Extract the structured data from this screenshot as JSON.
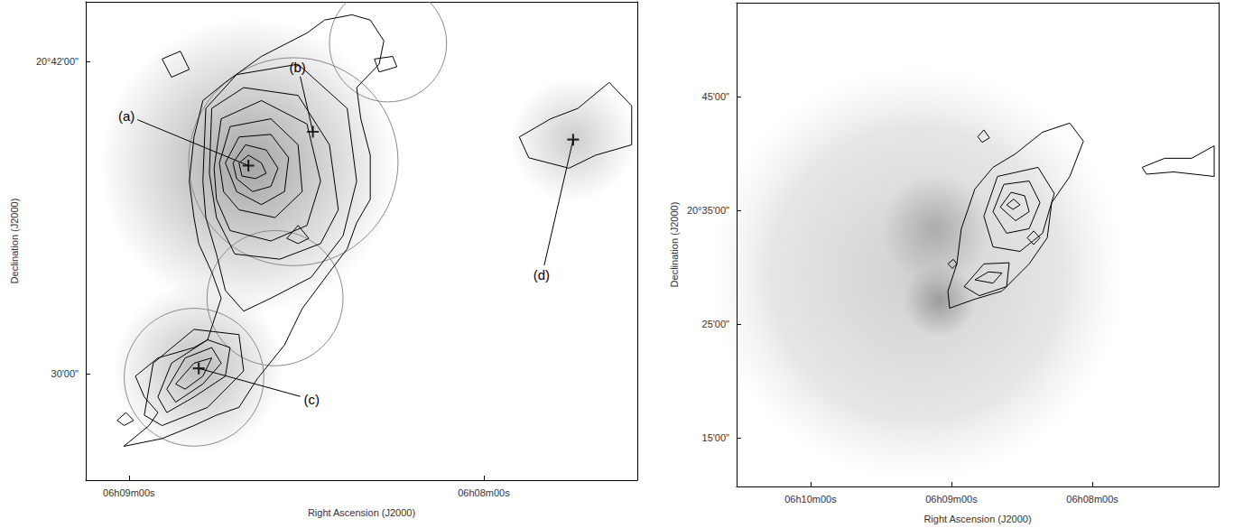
{
  "chart_data": [
    {
      "type": "contour",
      "x_label": "Right Ascension (J2000)",
      "y_label": "Declination (J2000)",
      "color": "#000000",
      "xlim": [
        22147.3,
        22054.05
      ],
      "ylim": [
        25.9,
        44.3
      ],
      "xticks": [
        {
          "value": 22140,
          "label": "06h09m00s"
        },
        {
          "value": 22080,
          "label": "06h08m00s"
        }
      ],
      "yticks": [
        {
          "value": 30,
          "label": "30'00\""
        },
        {
          "value": 42,
          "label": "20°42'00\""
        }
      ],
      "contours": [
        [
          [
            22140.9,
            27.2
          ],
          [
            22136.6,
            28.0
          ],
          [
            22135.1,
            28.5
          ],
          [
            22137.4,
            29.1
          ],
          [
            22138.9,
            29.9
          ],
          [
            22135.1,
            30.6
          ],
          [
            22129.0,
            31.0
          ],
          [
            22126.7,
            31.3
          ],
          [
            22124.4,
            32.9
          ],
          [
            22126.0,
            33.9
          ],
          [
            22128.2,
            35.0
          ],
          [
            22129.0,
            36.0
          ],
          [
            22129.8,
            37.4
          ],
          [
            22129.0,
            39.1
          ],
          [
            22127.5,
            40.5
          ],
          [
            22123.7,
            41.2
          ],
          [
            22117.6,
            42.2
          ],
          [
            22109.9,
            43.1
          ],
          [
            22106.9,
            43.6
          ],
          [
            22102.3,
            43.8
          ],
          [
            22099.2,
            43.6
          ],
          [
            22096.9,
            42.8
          ],
          [
            22097.7,
            41.9
          ],
          [
            22101.5,
            41.0
          ],
          [
            22100.8,
            39.8
          ],
          [
            22099.2,
            38.4
          ],
          [
            22099.2,
            36.7
          ],
          [
            22101.5,
            35.8
          ],
          [
            22103.1,
            34.8
          ],
          [
            22106.1,
            33.9
          ],
          [
            22110.7,
            32.5
          ],
          [
            22113.7,
            31.1
          ],
          [
            22118.3,
            29.8
          ],
          [
            22121.4,
            28.7
          ],
          [
            22125.2,
            28.4
          ],
          [
            22129.0,
            28.0
          ],
          [
            22134.4,
            27.5
          ]
        ],
        [
          [
            22121.4,
            38.1
          ],
          [
            22119.8,
            38.4
          ],
          [
            22117.6,
            38.1
          ],
          [
            22116.8,
            37.7
          ],
          [
            22118.6,
            37.5
          ],
          [
            22120.9,
            37.6
          ]
        ],
        [
          [
            22122.4,
            38.1
          ],
          [
            22120.3,
            38.8
          ],
          [
            22116.8,
            38.6
          ],
          [
            22114.8,
            37.9
          ],
          [
            22116.0,
            37.2
          ],
          [
            22119.1,
            37.0
          ],
          [
            22121.8,
            37.5
          ]
        ],
        [
          [
            22123.7,
            38.1
          ],
          [
            22121.4,
            39.1
          ],
          [
            22116.0,
            39.2
          ],
          [
            22113.0,
            38.3
          ],
          [
            22113.7,
            37.0
          ],
          [
            22117.6,
            36.5
          ],
          [
            22121.8,
            37.0
          ]
        ],
        [
          [
            22124.7,
            38.1
          ],
          [
            22122.9,
            39.5
          ],
          [
            22116.0,
            39.8
          ],
          [
            22111.4,
            38.8
          ],
          [
            22110.7,
            37.0
          ],
          [
            22115.3,
            36.0
          ],
          [
            22121.4,
            36.3
          ],
          [
            22124.0,
            37.0
          ]
        ],
        [
          [
            22125.6,
            37.9
          ],
          [
            22124.4,
            39.8
          ],
          [
            22117.6,
            40.5
          ],
          [
            22109.9,
            39.6
          ],
          [
            22107.6,
            37.4
          ],
          [
            22109.9,
            35.7
          ],
          [
            22116.0,
            35.1
          ],
          [
            22122.9,
            35.5
          ],
          [
            22125.2,
            36.7
          ]
        ],
        [
          [
            22126.4,
            37.7
          ],
          [
            22126.0,
            40.2
          ],
          [
            22120.6,
            41.0
          ],
          [
            22111.4,
            40.7
          ],
          [
            22106.1,
            38.8
          ],
          [
            22104.6,
            36.3
          ],
          [
            22107.6,
            35.0
          ],
          [
            22114.5,
            34.4
          ],
          [
            22122.1,
            34.6
          ],
          [
            22125.2,
            36.0
          ]
        ],
        [
          [
            22127.5,
            37.4
          ],
          [
            22127.0,
            40.2
          ],
          [
            22121.8,
            41.5
          ],
          [
            22111.4,
            41.9
          ],
          [
            22103.1,
            40.2
          ],
          [
            22101.5,
            37.4
          ],
          [
            22103.8,
            35.3
          ],
          [
            22109.2,
            33.7
          ],
          [
            22116.0,
            32.9
          ],
          [
            22120.6,
            32.4
          ],
          [
            22123.7,
            33.2
          ],
          [
            22125.2,
            34.6
          ],
          [
            22127.0,
            36.0
          ]
        ],
        [
          [
            22113.3,
            35.2
          ],
          [
            22111.4,
            35.7
          ],
          [
            22109.6,
            35.2
          ],
          [
            22111.4,
            35.0
          ]
        ],
        [
          [
            22132.1,
            29.6
          ],
          [
            22129.0,
            30.4
          ],
          [
            22126.0,
            30.6
          ],
          [
            22127.5,
            29.9
          ],
          [
            22130.5,
            29.4
          ]
        ],
        [
          [
            22133.6,
            29.4
          ],
          [
            22130.5,
            30.6
          ],
          [
            22126.0,
            31.0
          ],
          [
            22124.4,
            30.4
          ],
          [
            22127.5,
            29.6
          ],
          [
            22132.1,
            28.9
          ]
        ],
        [
          [
            22135.1,
            29.1
          ],
          [
            22132.8,
            30.4
          ],
          [
            22126.7,
            31.3
          ],
          [
            22122.9,
            31.0
          ],
          [
            22123.7,
            29.9
          ],
          [
            22129.0,
            29.1
          ],
          [
            22133.6,
            28.5
          ]
        ],
        [
          [
            22137.4,
            28.4
          ],
          [
            22135.9,
            30.4
          ],
          [
            22129.0,
            31.7
          ],
          [
            22121.4,
            31.5
          ],
          [
            22120.6,
            30.1
          ],
          [
            22126.7,
            28.7
          ],
          [
            22134.4,
            28.0
          ]
        ],
        [
          [
            22134.4,
            42.1
          ],
          [
            22131.3,
            42.4
          ],
          [
            22129.8,
            41.7
          ],
          [
            22132.8,
            41.4
          ]
        ],
        [
          [
            22098.5,
            42.1
          ],
          [
            22095.4,
            42.2
          ],
          [
            22094.7,
            41.8
          ],
          [
            22097.7,
            41.6
          ]
        ],
        [
          [
            22142.0,
            28.2
          ],
          [
            22140.5,
            28.5
          ],
          [
            22139.2,
            28.2
          ],
          [
            22140.8,
            28.0
          ]
        ],
        [
          [
            22074.0,
            39.1
          ],
          [
            22068.7,
            39.8
          ],
          [
            22064.1,
            40.2
          ],
          [
            22058.8,
            41.2
          ],
          [
            22055.0,
            40.3
          ],
          [
            22055.0,
            38.8
          ],
          [
            22061.1,
            38.4
          ],
          [
            22065.6,
            37.9
          ],
          [
            22072.4,
            38.3
          ]
        ]
      ],
      "circles": [
        {
          "x": 22112.2,
          "y": 38.15,
          "rx": 17.7,
          "ry": 4.0
        },
        {
          "x": 22096.2,
          "y": 42.7,
          "rx": 9.9,
          "ry": 2.25
        },
        {
          "x": 22115.3,
          "y": 32.9,
          "rx": 11.5,
          "ry": 2.6
        },
        {
          "x": 22129.0,
          "y": 29.86,
          "rx": 11.8,
          "ry": 2.65
        }
      ],
      "marker": "cross",
      "markers": [
        {
          "label": "(a)",
          "x": 22119.8,
          "y": 38.0
        },
        {
          "label": "(b)",
          "x": 22108.9,
          "y": 39.3
        },
        {
          "label": "(c)",
          "x": 22128.2,
          "y": 30.2
        },
        {
          "label": "(d)",
          "x": 22064.9,
          "y": 39.0
        }
      ]
    },
    {
      "type": "contour",
      "x_label": "Right Ascension (J2000)",
      "y_label": "Declination (J2000)",
      "color": "#000000",
      "xlim": [
        22231.5,
        22026.2
      ],
      "ylim": [
        10.7,
        53.3
      ],
      "xticks": [
        {
          "value": 22200,
          "label": "06h10m00s"
        },
        {
          "value": 22140,
          "label": "06h09m00s"
        },
        {
          "value": 22080,
          "label": "06h08m00s"
        }
      ],
      "yticks": [
        {
          "value": 15,
          "label": "15'00\""
        },
        {
          "value": 25,
          "label": "25'00\""
        },
        {
          "value": 35,
          "label": "20°35'00\""
        },
        {
          "value": 45,
          "label": "45'00\""
        }
      ],
      "contours": [
        [
          [
            22141.5,
            27.9
          ],
          [
            22137.7,
            30.3
          ],
          [
            22135.8,
            33.4
          ],
          [
            22130.0,
            36.9
          ],
          [
            22122.3,
            38.8
          ],
          [
            22112.7,
            40.0
          ],
          [
            22101.2,
            41.9
          ],
          [
            22089.6,
            42.7
          ],
          [
            22083.8,
            41.1
          ],
          [
            22089.6,
            38.0
          ],
          [
            22097.3,
            35.7
          ],
          [
            22099.2,
            32.6
          ],
          [
            22106.9,
            30.3
          ],
          [
            22118.5,
            27.9
          ],
          [
            22130.0,
            27.2
          ],
          [
            22140.8,
            26.4
          ]
        ],
        [
          [
            22116.5,
            35.5
          ],
          [
            22113.5,
            36.0
          ],
          [
            22110.8,
            35.5
          ],
          [
            22113.8,
            35.1
          ]
        ],
        [
          [
            22119.2,
            35.3
          ],
          [
            22114.6,
            36.6
          ],
          [
            22108.8,
            36.3
          ],
          [
            22106.9,
            34.9
          ],
          [
            22112.7,
            34.1
          ]
        ],
        [
          [
            22122.3,
            34.9
          ],
          [
            22117.7,
            37.3
          ],
          [
            22106.9,
            37.6
          ],
          [
            22102.3,
            35.7
          ],
          [
            22106.9,
            33.4
          ],
          [
            22116.5,
            33.0
          ]
        ],
        [
          [
            22126.2,
            34.5
          ],
          [
            22120.4,
            38.0
          ],
          [
            22103.1,
            38.8
          ],
          [
            22096.2,
            36.5
          ],
          [
            22101.2,
            33.0
          ],
          [
            22110.8,
            31.4
          ],
          [
            22122.3,
            31.8
          ]
        ],
        [
          [
            22107.7,
            32.6
          ],
          [
            22105.0,
            33.2
          ],
          [
            22102.3,
            32.6
          ],
          [
            22105.0,
            32.0
          ]
        ],
        [
          [
            22130.0,
            28.9
          ],
          [
            22124.2,
            29.6
          ],
          [
            22118.5,
            29.5
          ],
          [
            22122.3,
            28.6
          ]
        ],
        [
          [
            22134.6,
            28.3
          ],
          [
            22126.2,
            30.3
          ],
          [
            22115.4,
            30.4
          ],
          [
            22116.5,
            28.3
          ],
          [
            22128.1,
            27.5
          ]
        ],
        [
          [
            22128.8,
            41.5
          ],
          [
            22126.2,
            42.1
          ],
          [
            22123.8,
            41.4
          ],
          [
            22126.9,
            41.0
          ]
        ],
        [
          [
            22141.5,
            30.3
          ],
          [
            22139.2,
            30.7
          ],
          [
            22137.7,
            30.3
          ],
          [
            22139.6,
            29.9
          ]
        ],
        [
          [
            22058.8,
            38.8
          ],
          [
            22049.2,
            39.6
          ],
          [
            22037.7,
            39.6
          ],
          [
            22028.1,
            40.7
          ],
          [
            22028.1,
            38.0
          ],
          [
            22045.4,
            38.4
          ],
          [
            22056.9,
            38.2
          ]
        ]
      ]
    }
  ]
}
